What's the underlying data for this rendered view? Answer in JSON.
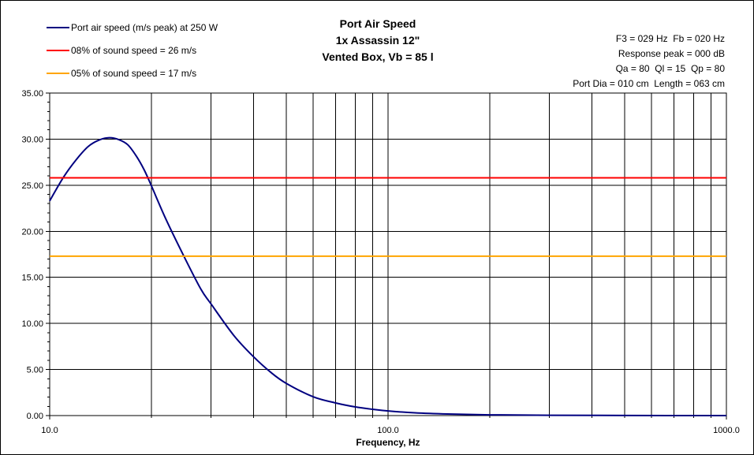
{
  "chart_data": {
    "type": "line",
    "title": [
      "Port Air Speed",
      "1x Assassin 12\"",
      "Vented Box, Vb = 85 l"
    ],
    "xlabel": "Frequency, Hz",
    "xscale": "log",
    "xlim": [
      10,
      1000
    ],
    "ylim": [
      0,
      35
    ],
    "xticks": [
      10,
      100,
      1000
    ],
    "xtick_labels": [
      "10.0",
      "100.0",
      "1000.0"
    ],
    "yticks": [
      0,
      5,
      10,
      15,
      20,
      25,
      30,
      35
    ],
    "ytick_labels": [
      "0.00",
      "5.00",
      "10.00",
      "15.00",
      "20.00",
      "25.00",
      "30.00",
      "35.00"
    ],
    "grid": true,
    "x_minor_grid": true,
    "legend_position": "top-left",
    "series": [
      {
        "name": "Port air speed (m/s peak) at 250 W",
        "color": "#000080",
        "x": [
          10,
          11,
          12,
          13,
          14,
          15,
          16,
          17,
          18,
          19,
          20,
          22,
          25,
          28,
          30,
          35,
          40,
          45,
          50,
          60,
          70,
          80,
          90,
          100,
          120,
          150,
          200,
          300,
          500,
          1000
        ],
        "y": [
          23.3,
          25.9,
          27.8,
          29.2,
          29.9,
          30.15,
          29.95,
          29.4,
          28.2,
          26.7,
          24.9,
          21.4,
          17.2,
          13.7,
          12.1,
          8.7,
          6.4,
          4.7,
          3.5,
          2.05,
          1.37,
          0.94,
          0.68,
          0.5,
          0.3,
          0.17,
          0.08,
          0.03,
          0.01,
          0.0
        ]
      },
      {
        "name": "08% of sound speed = 26 m/s",
        "color": "#ff0000",
        "x": [
          10,
          1000
        ],
        "y": [
          25.8,
          25.8
        ]
      },
      {
        "name": "05% of sound speed = 17 m/s",
        "color": "#ffa500",
        "x": [
          10,
          1000
        ],
        "y": [
          17.3,
          17.3
        ]
      }
    ],
    "annotations": [
      "F3 = 029 Hz  Fb = 020 Hz",
      "Response peak = 000 dB",
      "Qa = 80  Ql = 15  Qp = 80",
      "Port Dia = 010 cm  Length = 063 cm"
    ]
  }
}
